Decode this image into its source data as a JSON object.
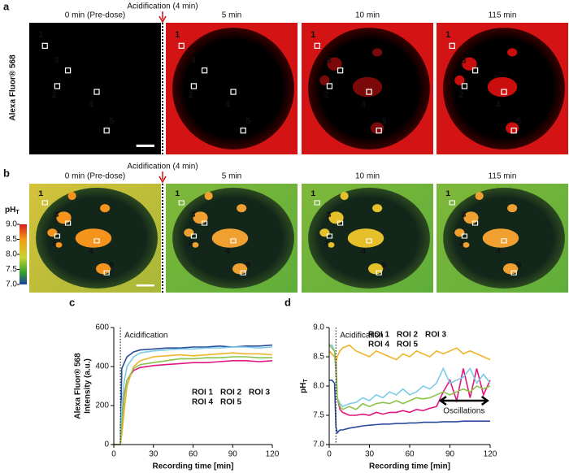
{
  "figure": {
    "roi_labels": [
      "1",
      "2",
      "3",
      "4",
      "5"
    ],
    "roi_colors": [
      "#2a4b9b",
      "#e0177f",
      "#7ccbe6",
      "#f0a030",
      "#8bc34a"
    ],
    "panel_a": {
      "label": "a",
      "event": "Acidification (4 min)",
      "timepoints": [
        "0 min (Pre-dose)",
        "5 min",
        "10 min",
        "115 min"
      ],
      "channel": "Alexa Fluor® 568"
    },
    "panel_b": {
      "label": "b",
      "event": "Acidification (4 min)",
      "timepoints": [
        "0 min (Pre-dose)",
        "5 min",
        "10 min",
        "115 min"
      ],
      "colorbar": {
        "title": "pH",
        "subscript": "T",
        "ticks": [
          {
            "value": 9,
            "label": "9.0"
          },
          {
            "value": 8.5,
            "label": "8.5"
          },
          {
            "value": 8,
            "label": "8.0"
          },
          {
            "value": 7.5,
            "label": "7.5"
          },
          {
            "value": 7,
            "label": "7.0"
          }
        ]
      }
    }
  },
  "chart_data": [
    {
      "type": "line",
      "panel": "c",
      "xlabel": "Recording time [min]",
      "ylabel": [
        "Alexa Fluor® 568",
        "Intensity (a.u.)"
      ],
      "xlim": [
        0,
        120
      ],
      "xticks": [
        0,
        30,
        60,
        90,
        120
      ],
      "ylim": [
        0,
        600
      ],
      "yticks": [
        0,
        200,
        400,
        600
      ],
      "legend": "right",
      "annotations": [
        {
          "text": "Acidification",
          "x": 5
        }
      ],
      "x": [
        0,
        5,
        6,
        8,
        10,
        15,
        20,
        30,
        40,
        50,
        60,
        70,
        80,
        90,
        100,
        110,
        120
      ],
      "series": [
        {
          "name": "ROI 1",
          "color": "#2a4b9b",
          "values": [
            0,
            0,
            390,
            420,
            450,
            475,
            485,
            490,
            495,
            495,
            500,
            500,
            505,
            500,
            505,
            505,
            510
          ]
        },
        {
          "name": "ROI 2",
          "color": "#e0177f",
          "values": [
            0,
            0,
            120,
            260,
            330,
            380,
            395,
            405,
            410,
            415,
            420,
            420,
            425,
            430,
            430,
            425,
            430
          ]
        },
        {
          "name": "ROI 3",
          "color": "#7ccbe6",
          "values": [
            0,
            0,
            200,
            330,
            400,
            450,
            470,
            480,
            485,
            490,
            490,
            495,
            495,
            500,
            500,
            495,
            500
          ]
        },
        {
          "name": "ROI 4",
          "color": "#f0b429",
          "values": [
            0,
            0,
            50,
            180,
            300,
            400,
            430,
            450,
            455,
            460,
            455,
            460,
            465,
            470,
            465,
            465,
            460
          ]
        },
        {
          "name": "ROI 5",
          "color": "#8bc34a",
          "values": [
            0,
            0,
            100,
            250,
            330,
            390,
            410,
            420,
            430,
            440,
            440,
            445,
            445,
            450,
            450,
            445,
            445
          ]
        }
      ]
    },
    {
      "type": "line",
      "panel": "d",
      "xlabel": "Recording time [min]",
      "ylabel": "pH",
      "ylabel_sub": "T",
      "xlim": [
        0,
        120
      ],
      "xticks": [
        0,
        30,
        60,
        90,
        120
      ],
      "ylim": [
        7,
        9
      ],
      "yticks": [
        {
          "value": 7,
          "label": "7.0"
        },
        {
          "value": 7.5,
          "label": "7.5"
        },
        {
          "value": 8,
          "label": "8.0"
        },
        {
          "value": 8.5,
          "label": "8.5"
        },
        {
          "value": 9,
          "label": "9.0"
        }
      ],
      "legend": "top",
      "annotations": [
        {
          "text": "Acidification",
          "x": 5
        },
        {
          "text": "Oscillations",
          "x": [
            83,
            118
          ],
          "y": 7.75
        }
      ],
      "x": [
        0,
        2,
        4,
        5,
        6,
        8,
        10,
        15,
        20,
        25,
        30,
        35,
        40,
        45,
        50,
        55,
        60,
        65,
        70,
        75,
        80,
        85,
        90,
        95,
        100,
        105,
        110,
        115,
        120
      ],
      "series": [
        {
          "name": "ROI 1",
          "color": "#2a4b9b",
          "values": [
            8.1,
            8.1,
            8.05,
            7.3,
            7.2,
            7.25,
            7.25,
            7.28,
            7.3,
            7.32,
            7.33,
            7.34,
            7.35,
            7.35,
            7.36,
            7.36,
            7.37,
            7.37,
            7.38,
            7.38,
            7.38,
            7.39,
            7.39,
            7.39,
            7.4,
            7.4,
            7.4,
            7.4,
            7.4
          ]
        },
        {
          "name": "ROI 2",
          "color": "#e0177f",
          "values": [
            8.6,
            8.55,
            8.5,
            8.4,
            7.8,
            7.6,
            7.55,
            7.5,
            7.5,
            7.52,
            7.5,
            7.55,
            7.52,
            7.55,
            7.55,
            7.58,
            7.55,
            7.6,
            7.58,
            7.62,
            7.65,
            7.9,
            8.1,
            7.75,
            8.3,
            7.8,
            8.3,
            7.85,
            8.1
          ]
        },
        {
          "name": "ROI 3",
          "color": "#7ccbe6",
          "values": [
            8.7,
            8.7,
            8.6,
            8.2,
            7.8,
            7.7,
            7.65,
            7.7,
            7.72,
            7.8,
            7.75,
            7.85,
            7.8,
            7.9,
            7.85,
            7.95,
            7.85,
            7.9,
            8,
            7.95,
            8.05,
            8.3,
            8.05,
            8.1,
            8.15,
            8.3,
            8.05,
            8.2,
            8.05
          ]
        },
        {
          "name": "ROI 4",
          "color": "#f0b429",
          "values": [
            8.6,
            8.55,
            8.5,
            8.4,
            8.5,
            8.6,
            8.65,
            8.7,
            8.6,
            8.55,
            8.5,
            8.6,
            8.55,
            8.5,
            8.45,
            8.55,
            8.5,
            8.6,
            8.55,
            8.5,
            8.6,
            8.55,
            8.6,
            8.65,
            8.55,
            8.6,
            8.55,
            8.5,
            8.45
          ]
        },
        {
          "name": "ROI 5",
          "color": "#8bc34a",
          "values": [
            8.7,
            8.65,
            8.6,
            8.3,
            7.8,
            7.65,
            7.6,
            7.65,
            7.6,
            7.7,
            7.65,
            7.7,
            7.72,
            7.7,
            7.75,
            7.7,
            7.75,
            7.8,
            7.78,
            7.8,
            7.85,
            7.9,
            7.85,
            7.9,
            7.95,
            7.9,
            8,
            7.95,
            8
          ]
        }
      ]
    }
  ]
}
